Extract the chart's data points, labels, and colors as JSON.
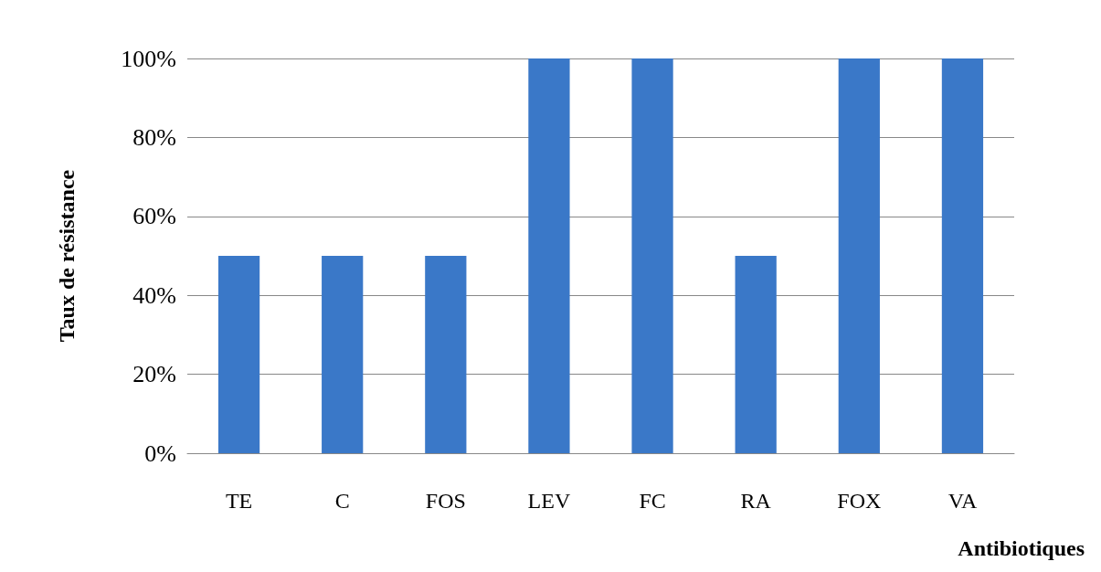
{
  "chart_data": {
    "type": "bar",
    "xlabel": "Antibiotiques",
    "ylabel": "Taux de résistance",
    "categories": [
      "TE",
      "C",
      "FOS",
      "LEV",
      "FC",
      "RA",
      "FOX",
      "VA"
    ],
    "values": [
      50,
      50,
      50,
      100,
      100,
      50,
      100,
      100
    ],
    "color": "#3a78c8",
    "ylim": [
      0,
      100
    ],
    "yticks": [
      {
        "value": 0,
        "label": "0%"
      },
      {
        "value": 20,
        "label": "20%"
      },
      {
        "value": 40,
        "label": "40%"
      },
      {
        "value": 60,
        "label": "60%"
      },
      {
        "value": 80,
        "label": "80%"
      },
      {
        "value": 100,
        "label": "100%"
      }
    ],
    "grid": "y"
  }
}
